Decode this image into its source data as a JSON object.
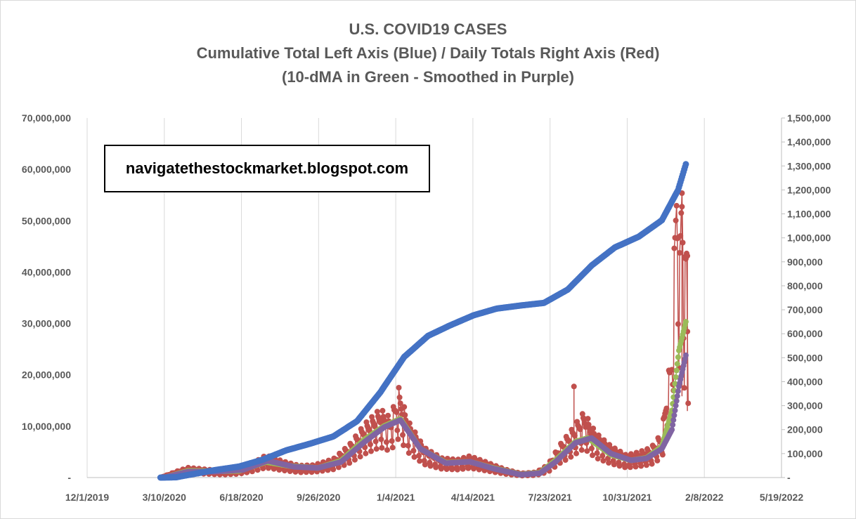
{
  "chart_data": {
    "type": "scatter",
    "title_lines": [
      "U.S. COVID19 CASES",
      "Cumulative Total Left Axis (Blue) / Daily Totals Right Axis (Red)",
      "(10-dMA in Green - Smoothed in Purple)"
    ],
    "annotation": "navigatethestockmarket.blogspot.com",
    "x_tick_labels": [
      "12/1/2019",
      "3/10/2020",
      "6/18/2020",
      "9/26/2020",
      "1/4/2021",
      "4/14/2021",
      "7/23/2021",
      "10/31/2021",
      "2/8/2022",
      "5/19/2022"
    ],
    "xlim": [
      "2019-12-01",
      "2022-05-19"
    ],
    "y_left": {
      "ylim": [
        0,
        70000000
      ],
      "tick_labels": [
        "-",
        "10,000,000",
        "20,000,000",
        "30,000,000",
        "40,000,000",
        "50,000,000",
        "60,000,000",
        "70,000,000"
      ]
    },
    "y_right": {
      "ylim": [
        0,
        1500000
      ],
      "tick_labels": [
        "-",
        "100,000",
        "200,000",
        "300,000",
        "400,000",
        "500,000",
        "600,000",
        "700,000",
        "800,000",
        "900,000",
        "1,000,000",
        "1,100,000",
        "1,200,000",
        "1,300,000",
        "1,400,000",
        "1,500,000"
      ]
    },
    "grid": "vertical",
    "colors": {
      "cumulative": "#4472C4",
      "daily": "#C0504D",
      "ma10": "#9BBB59",
      "smoothed": "#8064A2",
      "axis_text": "#595959",
      "gridline": "#d9d9d9"
    },
    "series": [
      {
        "key": "cumulative",
        "axis": "left",
        "points": [
          [
            "2020-03-05",
            0
          ],
          [
            "2020-03-25",
            60000
          ],
          [
            "2020-04-15",
            640000
          ],
          [
            "2020-05-15",
            1460000
          ],
          [
            "2020-06-15",
            2150000
          ],
          [
            "2020-07-15",
            3450000
          ],
          [
            "2020-08-15",
            5300000
          ],
          [
            "2020-09-15",
            6600000
          ],
          [
            "2020-10-15",
            8000000
          ],
          [
            "2020-11-15",
            11000000
          ],
          [
            "2020-12-15",
            16600000
          ],
          [
            "2021-01-15",
            23500000
          ],
          [
            "2021-02-15",
            27600000
          ],
          [
            "2021-03-15",
            29600000
          ],
          [
            "2021-04-15",
            31600000
          ],
          [
            "2021-05-15",
            32900000
          ],
          [
            "2021-06-15",
            33500000
          ],
          [
            "2021-07-15",
            34000000
          ],
          [
            "2021-08-15",
            36600000
          ],
          [
            "2021-09-15",
            41300000
          ],
          [
            "2021-10-15",
            44800000
          ],
          [
            "2021-11-15",
            46900000
          ],
          [
            "2021-12-15",
            50100000
          ],
          [
            "2022-01-05",
            56000000
          ],
          [
            "2022-01-15",
            61000000
          ]
        ]
      },
      {
        "key": "daily",
        "axis": "right",
        "points": [
          [
            "2020-03-05",
            0
          ],
          [
            "2020-03-25",
            20000
          ],
          [
            "2020-04-10",
            33000
          ],
          [
            "2020-05-01",
            28000
          ],
          [
            "2020-05-25",
            22000
          ],
          [
            "2020-06-15",
            28000
          ],
          [
            "2020-07-01",
            45000
          ],
          [
            "2020-07-20",
            75000
          ],
          [
            "2020-08-10",
            55000
          ],
          [
            "2020-09-01",
            40000
          ],
          [
            "2020-09-20",
            42000
          ],
          [
            "2020-10-15",
            62000
          ],
          [
            "2020-11-05",
            110000
          ],
          [
            "2020-11-25",
            180000
          ],
          [
            "2020-12-15",
            230000
          ],
          [
            "2020-12-28",
            200000
          ],
          [
            "2021-01-08",
            300000
          ],
          [
            "2021-01-20",
            190000
          ],
          [
            "2021-02-10",
            100000
          ],
          [
            "2021-03-05",
            65000
          ],
          [
            "2021-03-25",
            60000
          ],
          [
            "2021-04-10",
            72000
          ],
          [
            "2021-05-01",
            52000
          ],
          [
            "2021-05-25",
            28000
          ],
          [
            "2021-06-15",
            14000
          ],
          [
            "2021-07-05",
            18000
          ],
          [
            "2021-07-20",
            42000
          ],
          [
            "2021-08-05",
            110000
          ],
          [
            "2021-08-20",
            160000
          ],
          [
            "2021-09-05",
            220000
          ],
          [
            "2021-09-20",
            150000
          ],
          [
            "2021-10-10",
            105000
          ],
          [
            "2021-10-30",
            75000
          ],
          [
            "2021-11-15",
            85000
          ],
          [
            "2021-12-01",
            100000
          ],
          [
            "2021-12-15",
            150000
          ],
          [
            "2021-12-28",
            450000
          ],
          [
            "2022-01-03",
            1080000
          ],
          [
            "2022-01-07",
            750000
          ],
          [
            "2022-01-10",
            1130000
          ],
          [
            "2022-01-13",
            680000
          ],
          [
            "2022-01-16",
            850000
          ],
          [
            "2022-01-18",
            310000
          ]
        ],
        "spikes": [
          [
            "2021-08-23",
            380000
          ],
          [
            "2022-01-10",
            1130000
          ],
          [
            "2022-01-17",
            925000
          ]
        ]
      },
      {
        "key": "ma10",
        "axis": "right",
        "points": [
          [
            "2020-03-10",
            0
          ],
          [
            "2020-04-10",
            28000
          ],
          [
            "2020-05-15",
            26000
          ],
          [
            "2020-06-15",
            28000
          ],
          [
            "2020-07-20",
            65000
          ],
          [
            "2020-08-20",
            48000
          ],
          [
            "2020-09-25",
            40000
          ],
          [
            "2020-10-25",
            70000
          ],
          [
            "2020-11-25",
            160000
          ],
          [
            "2020-12-20",
            215000
          ],
          [
            "2021-01-10",
            245000
          ],
          [
            "2021-02-05",
            120000
          ],
          [
            "2021-03-10",
            62000
          ],
          [
            "2021-04-10",
            66000
          ],
          [
            "2021-05-10",
            40000
          ],
          [
            "2021-06-15",
            13000
          ],
          [
            "2021-07-10",
            20000
          ],
          [
            "2021-07-30",
            72000
          ],
          [
            "2021-08-25",
            150000
          ],
          [
            "2021-09-10",
            165000
          ],
          [
            "2021-10-10",
            95000
          ],
          [
            "2021-11-05",
            72000
          ],
          [
            "2021-11-25",
            82000
          ],
          [
            "2021-12-15",
            130000
          ],
          [
            "2021-12-28",
            280000
          ],
          [
            "2022-01-06",
            530000
          ],
          [
            "2022-01-15",
            650000
          ]
        ]
      },
      {
        "key": "smoothed",
        "axis": "right",
        "points": [
          [
            "2020-03-10",
            0
          ],
          [
            "2020-04-10",
            25000
          ],
          [
            "2020-05-15",
            25000
          ],
          [
            "2020-06-20",
            32000
          ],
          [
            "2020-07-22",
            70000
          ],
          [
            "2020-08-25",
            45000
          ],
          [
            "2020-09-25",
            40000
          ],
          [
            "2020-10-25",
            65000
          ],
          [
            "2020-11-25",
            150000
          ],
          [
            "2020-12-20",
            210000
          ],
          [
            "2021-01-10",
            240000
          ],
          [
            "2021-02-05",
            120000
          ],
          [
            "2021-03-10",
            60000
          ],
          [
            "2021-04-10",
            66000
          ],
          [
            "2021-05-10",
            38000
          ],
          [
            "2021-06-15",
            12000
          ],
          [
            "2021-07-10",
            18000
          ],
          [
            "2021-07-30",
            65000
          ],
          [
            "2021-08-25",
            145000
          ],
          [
            "2021-09-15",
            165000
          ],
          [
            "2021-10-10",
            100000
          ],
          [
            "2021-11-05",
            72000
          ],
          [
            "2021-11-25",
            80000
          ],
          [
            "2021-12-15",
            120000
          ],
          [
            "2021-12-28",
            200000
          ],
          [
            "2022-01-06",
            380000
          ],
          [
            "2022-01-15",
            510000
          ]
        ]
      }
    ]
  }
}
